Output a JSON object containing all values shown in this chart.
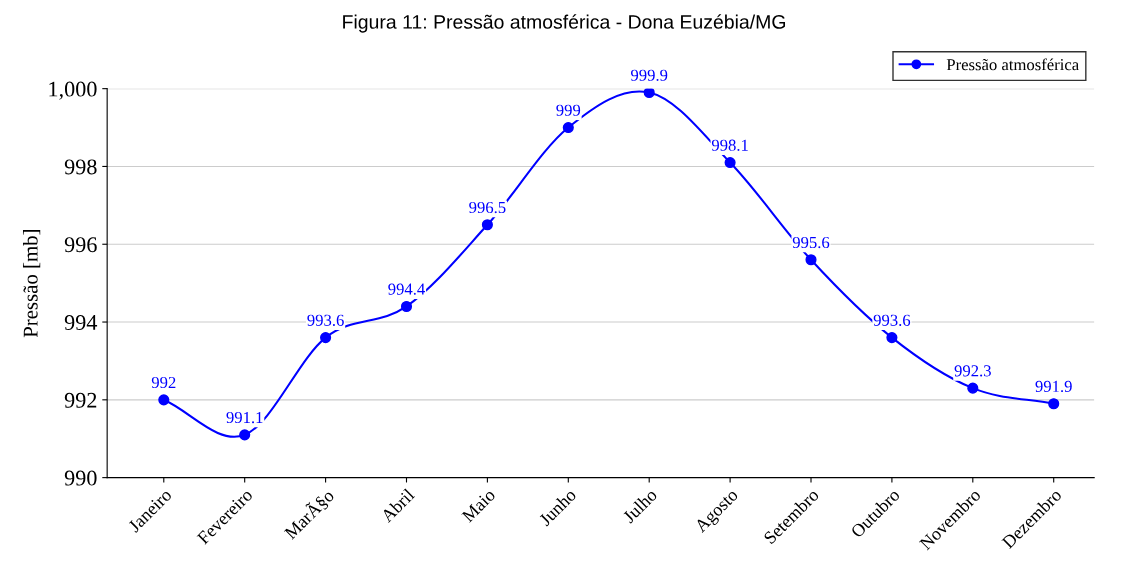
{
  "chart_data": {
    "type": "line",
    "title": "Figura 11: Pressão atmosférica - Dona Euzébia/MG",
    "ylabel": "Pressão [mb]",
    "categories": [
      "Janeiro",
      "Fevereiro",
      "MarÃ§o",
      "Abril",
      "Maio",
      "Junho",
      "Julho",
      "Agosto",
      "Setembro",
      "Outubro",
      "Novembro",
      "Dezembro"
    ],
    "series": [
      {
        "name": "Pressão atmosférica",
        "color": "#0000ff",
        "values": [
          992,
          991.1,
          993.6,
          994.4,
          996.5,
          999,
          999.9,
          998.1,
          995.6,
          993.6,
          992.3,
          991.9
        ]
      }
    ],
    "ylim": [
      990,
      1000
    ],
    "yticks": [
      990,
      992,
      994,
      996,
      998,
      {
        "value": 1000,
        "label": "1,000"
      }
    ],
    "grid": "y",
    "legend": "top right",
    "marker": "circle",
    "line_style": "solid",
    "data_labels": true
  }
}
